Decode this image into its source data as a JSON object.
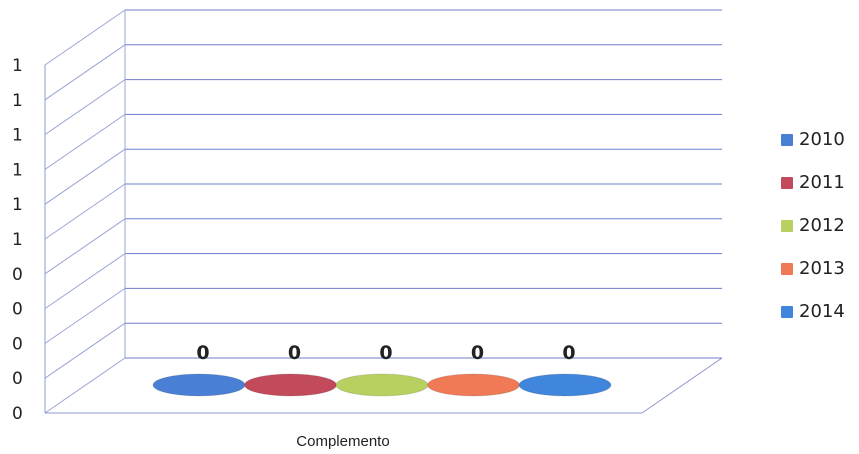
{
  "chart_data": {
    "type": "bar",
    "categories": [
      "Complemento"
    ],
    "series": [
      {
        "name": "2010",
        "values": [
          0
        ],
        "color": "#4a7fd6"
      },
      {
        "name": "2011",
        "values": [
          0
        ],
        "color": "#c24a5a"
      },
      {
        "name": "2012",
        "values": [
          0
        ],
        "color": "#b8d060"
      },
      {
        "name": "2013",
        "values": [
          0
        ],
        "color": "#f07a55"
      },
      {
        "name": "2014",
        "values": [
          0
        ],
        "color": "#3f86dc"
      }
    ],
    "data_labels": [
      "0",
      "0",
      "0",
      "0",
      "0"
    ],
    "y_tick_labels": [
      "0",
      "0",
      "0",
      "0",
      "0",
      "1",
      "1",
      "1",
      "1",
      "1",
      "1"
    ],
    "xlabel": "Complemento",
    "ylabel": "",
    "title": "",
    "grid": true,
    "legend_position": "right",
    "style": "3d"
  }
}
